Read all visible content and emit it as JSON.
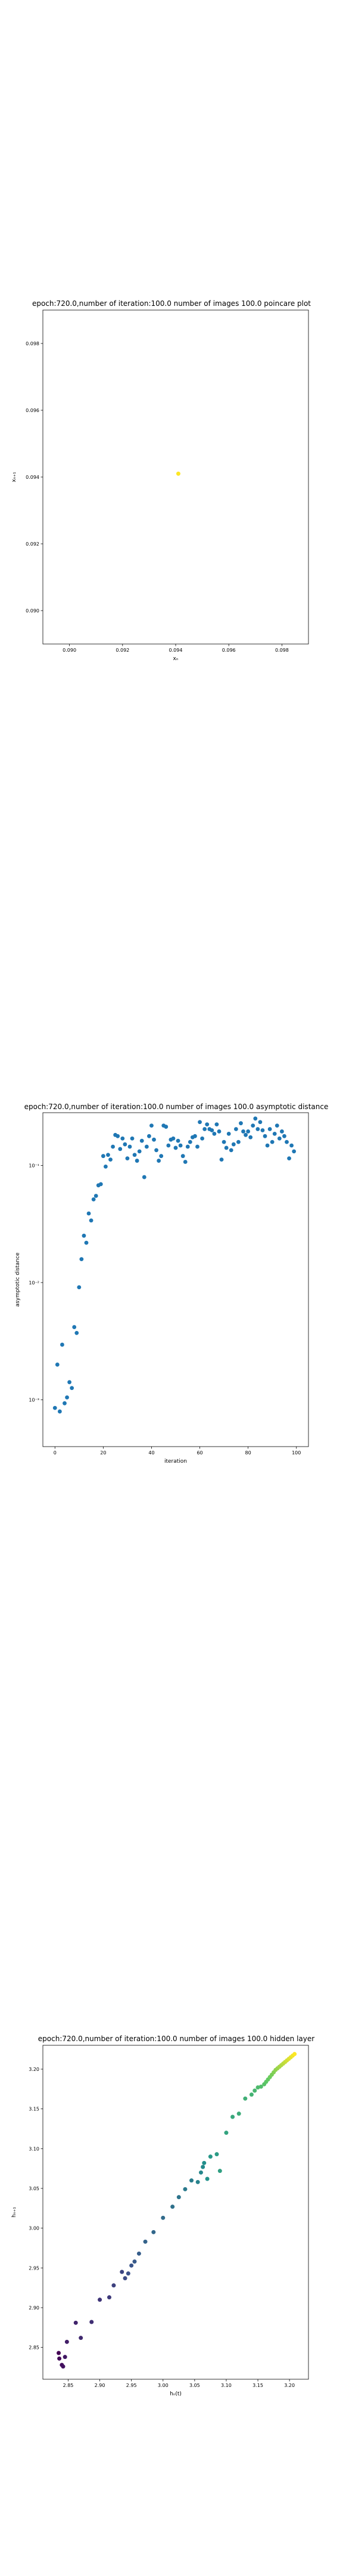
{
  "chart_data": [
    {
      "type": "scatter",
      "title": "epoch:720.0,number of iteration:100.0 number of images 100.0 poincare plot",
      "xlabel": "xₙ",
      "ylabel": "xₙ₊₁",
      "xlim": [
        0.089,
        0.099
      ],
      "ylim": [
        0.089,
        0.099
      ],
      "xticks": [
        0.09,
        0.092,
        0.094,
        0.096,
        0.098
      ],
      "yticks": [
        0.09,
        0.092,
        0.094,
        0.096,
        0.098
      ],
      "xtick_labels": [
        "0.090",
        "0.092",
        "0.094",
        "0.096",
        "0.098"
      ],
      "ytick_labels": [
        "0.090",
        "0.092",
        "0.094",
        "0.096",
        "0.098"
      ],
      "grid": false,
      "point_color": "#fde725",
      "points": [
        {
          "x": 0.0941,
          "y": 0.0941
        }
      ]
    },
    {
      "type": "scatter",
      "title": "epoch:720.0,number of iteration:100.0  number of images 100.0 asymptotic distance",
      "xlabel": "iteration",
      "ylabel": "asymptotic distance",
      "xlim": [
        -5,
        105
      ],
      "ylim_exp": [
        -3.4,
        -0.55
      ],
      "yscale": "log",
      "xticks": [
        0,
        20,
        40,
        60,
        80,
        100
      ],
      "xtick_labels": [
        "0",
        "20",
        "40",
        "60",
        "80",
        "100"
      ],
      "yticks": [
        -3,
        -2,
        -1
      ],
      "ytick_labels": [
        "10⁻³",
        "10⁻²",
        "10⁻¹"
      ],
      "grid": false,
      "point_color": "#1f77b4",
      "y_exponents": [
        -3.07,
        -2.7,
        -3.1,
        -2.53,
        -3.03,
        -2.98,
        -2.85,
        -2.9,
        -2.38,
        -2.43,
        -2.04,
        -1.8,
        -1.6,
        -1.66,
        -1.41,
        -1.47,
        -1.29,
        -1.26,
        -1.17,
        -1.16,
        -0.92,
        -1.01,
        -0.91,
        -0.95,
        -0.84,
        -0.74,
        -0.75,
        -0.86,
        -0.77,
        -0.82,
        -0.94,
        -0.84,
        -0.77,
        -0.91,
        -0.96,
        -0.88,
        -0.79,
        -1.1,
        -0.84,
        -0.75,
        -0.66,
        -0.78,
        -0.87,
        -0.96,
        -0.92,
        -0.66,
        -0.67,
        -0.83,
        -0.78,
        -0.77,
        -0.85,
        -0.79,
        -0.83,
        -0.92,
        -0.97,
        -0.84,
        -0.8,
        -0.76,
        -0.75,
        -0.84,
        -0.63,
        -0.77,
        -0.69,
        -0.65,
        -0.69,
        -0.7,
        -0.73,
        -0.65,
        -0.71,
        -0.95,
        -0.8,
        -0.85,
        -0.73,
        -0.87,
        -0.82,
        -0.69,
        -0.8,
        -0.64,
        -0.71,
        -0.74,
        -0.71,
        -0.76,
        -0.66,
        -0.6,
        -0.69,
        -0.63,
        -0.7,
        -0.75,
        -0.83,
        -0.69,
        -0.8,
        -0.73,
        -0.66,
        -0.77,
        -0.71,
        -0.75,
        -0.8,
        -0.94,
        -0.83,
        -0.88
      ]
    },
    {
      "type": "scatter",
      "title": "epoch:720.0,number of iteration:100.0  number of images 100.0 hidden layer",
      "xlabel": "hₙ(t)",
      "ylabel": "hₙ₊₁",
      "xlim": [
        2.81,
        3.23
      ],
      "ylim": [
        2.81,
        3.23
      ],
      "xticks": [
        2.85,
        2.9,
        2.95,
        3.0,
        3.05,
        3.1,
        3.15,
        3.2
      ],
      "yticks": [
        2.85,
        2.9,
        2.95,
        3.0,
        3.05,
        3.1,
        3.15,
        3.2
      ],
      "xtick_labels": [
        "2.85",
        "2.90",
        "2.95",
        "3.00",
        "3.05",
        "3.10",
        "3.15",
        "3.20"
      ],
      "ytick_labels": [
        "2.85",
        "2.90",
        "2.95",
        "3.00",
        "3.05",
        "3.10",
        "3.15",
        "3.20"
      ],
      "grid": false,
      "colormap": "viridis",
      "points": [
        [
          2.835,
          2.843
        ],
        [
          2.836,
          2.836
        ],
        [
          2.84,
          2.828
        ],
        [
          2.842,
          2.826
        ],
        [
          2.845,
          2.838
        ],
        [
          2.848,
          2.857
        ],
        [
          2.862,
          2.881
        ],
        [
          2.87,
          2.862
        ],
        [
          2.887,
          2.882
        ],
        [
          2.9,
          2.91
        ],
        [
          2.915,
          2.913
        ],
        [
          2.922,
          2.928
        ],
        [
          2.935,
          2.945
        ],
        [
          2.94,
          2.937
        ],
        [
          2.945,
          2.943
        ],
        [
          2.95,
          2.953
        ],
        [
          2.955,
          2.958
        ],
        [
          2.962,
          2.968
        ],
        [
          2.972,
          2.983
        ],
        [
          2.985,
          2.995
        ],
        [
          3.0,
          3.013
        ],
        [
          3.015,
          3.027
        ],
        [
          3.025,
          3.039
        ],
        [
          3.035,
          3.049
        ],
        [
          3.045,
          3.06
        ],
        [
          3.055,
          3.058
        ],
        [
          3.06,
          3.07
        ],
        [
          3.063,
          3.077
        ],
        [
          3.065,
          3.082
        ],
        [
          3.07,
          3.062
        ],
        [
          3.075,
          3.09
        ],
        [
          3.085,
          3.093
        ],
        [
          3.09,
          3.072
        ],
        [
          3.1,
          3.12
        ],
        [
          3.11,
          3.14
        ],
        [
          3.12,
          3.144
        ],
        [
          3.13,
          3.163
        ],
        [
          3.14,
          3.168
        ],
        [
          3.145,
          3.173
        ],
        [
          3.15,
          3.177
        ],
        [
          3.155,
          3.178
        ],
        [
          3.16,
          3.181
        ],
        [
          3.163,
          3.184
        ],
        [
          3.166,
          3.187
        ],
        [
          3.169,
          3.19
        ],
        [
          3.172,
          3.193
        ],
        [
          3.175,
          3.196
        ],
        [
          3.178,
          3.199
        ],
        [
          3.181,
          3.201
        ],
        [
          3.184,
          3.203
        ],
        [
          3.187,
          3.205
        ],
        [
          3.19,
          3.207
        ],
        [
          3.193,
          3.209
        ],
        [
          3.196,
          3.211
        ],
        [
          3.199,
          3.213
        ],
        [
          3.202,
          3.215
        ],
        [
          3.205,
          3.217
        ],
        [
          3.208,
          3.219
        ]
      ]
    }
  ]
}
